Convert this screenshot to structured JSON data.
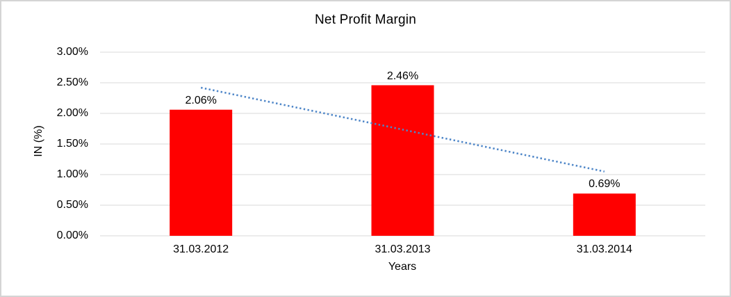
{
  "page": {
    "background": "#ffffff",
    "border_color": "#d4d4d4"
  },
  "chart_data": {
    "type": "bar",
    "title": "Net Profit Margin",
    "categories": [
      "31.03.2012",
      "31.03.2013",
      "31.03.2014"
    ],
    "values": [
      2.06,
      2.46,
      0.69
    ],
    "data_labels": [
      "2.06%",
      "2.46%",
      "0.69%"
    ],
    "xlabel": "Years",
    "ylabel": "IN (%)",
    "ylim": [
      0,
      3
    ],
    "ytick_step": 0.5,
    "ytick_labels": [
      "0.00%",
      "0.50%",
      "1.00%",
      "1.50%",
      "2.00%",
      "2.50%",
      "3.00%"
    ],
    "grid": true,
    "legend": "none",
    "bar_color": "#ff0000",
    "gridline_color": "#d9d9d9",
    "text_color": "#000000",
    "trendline": {
      "type": "linear",
      "style": "dotted",
      "color": "#4e86c8",
      "start_value": 2.42,
      "end_value": 1.05
    }
  }
}
